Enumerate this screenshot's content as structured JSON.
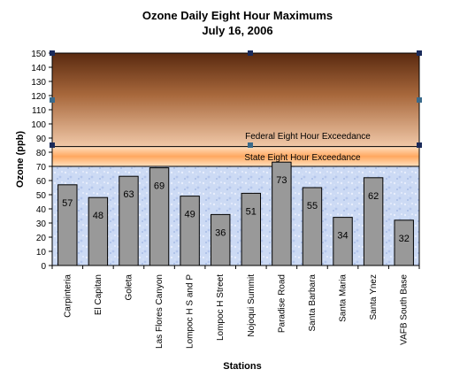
{
  "chart_data": {
    "type": "bar",
    "title": "Ozone Daily Eight Hour Maximums",
    "subtitle": "July 16, 2006",
    "xlabel": "Stations",
    "ylabel": "Ozone  (ppb)",
    "ylim": [
      0,
      150
    ],
    "yticks": [
      0,
      10,
      20,
      30,
      40,
      50,
      60,
      70,
      80,
      90,
      100,
      110,
      120,
      130,
      140,
      150
    ],
    "categories": [
      "Carpinteria",
      "El Capitan",
      "Goleta",
      "Las Flores Canyon",
      "Lompoc H S and P",
      "Lompoc H Street",
      "Nojoqui Summit",
      "Paradise Road",
      "Santa Barbara",
      "Santa Maria",
      "Santa Ynez",
      "VAFB South Base"
    ],
    "values": [
      57,
      48,
      63,
      69,
      49,
      36,
      51,
      73,
      55,
      34,
      62,
      32
    ],
    "bands": [
      {
        "label": "Federal Eight Hour Exceedance",
        "from": 84,
        "to": 150
      },
      {
        "label": "State Eight Hour Exceedance",
        "from": 70,
        "to": 84
      }
    ],
    "grid": false,
    "legend": "none",
    "colors": {
      "bar_fill": "#999999",
      "bar_stroke": "#000000",
      "federal_top": "#5a2a10",
      "federal_bottom": "#f0c8a8",
      "state_edge": "#ffe0c0",
      "state_center": "#ffa860",
      "background": "#c8d8f4"
    }
  }
}
